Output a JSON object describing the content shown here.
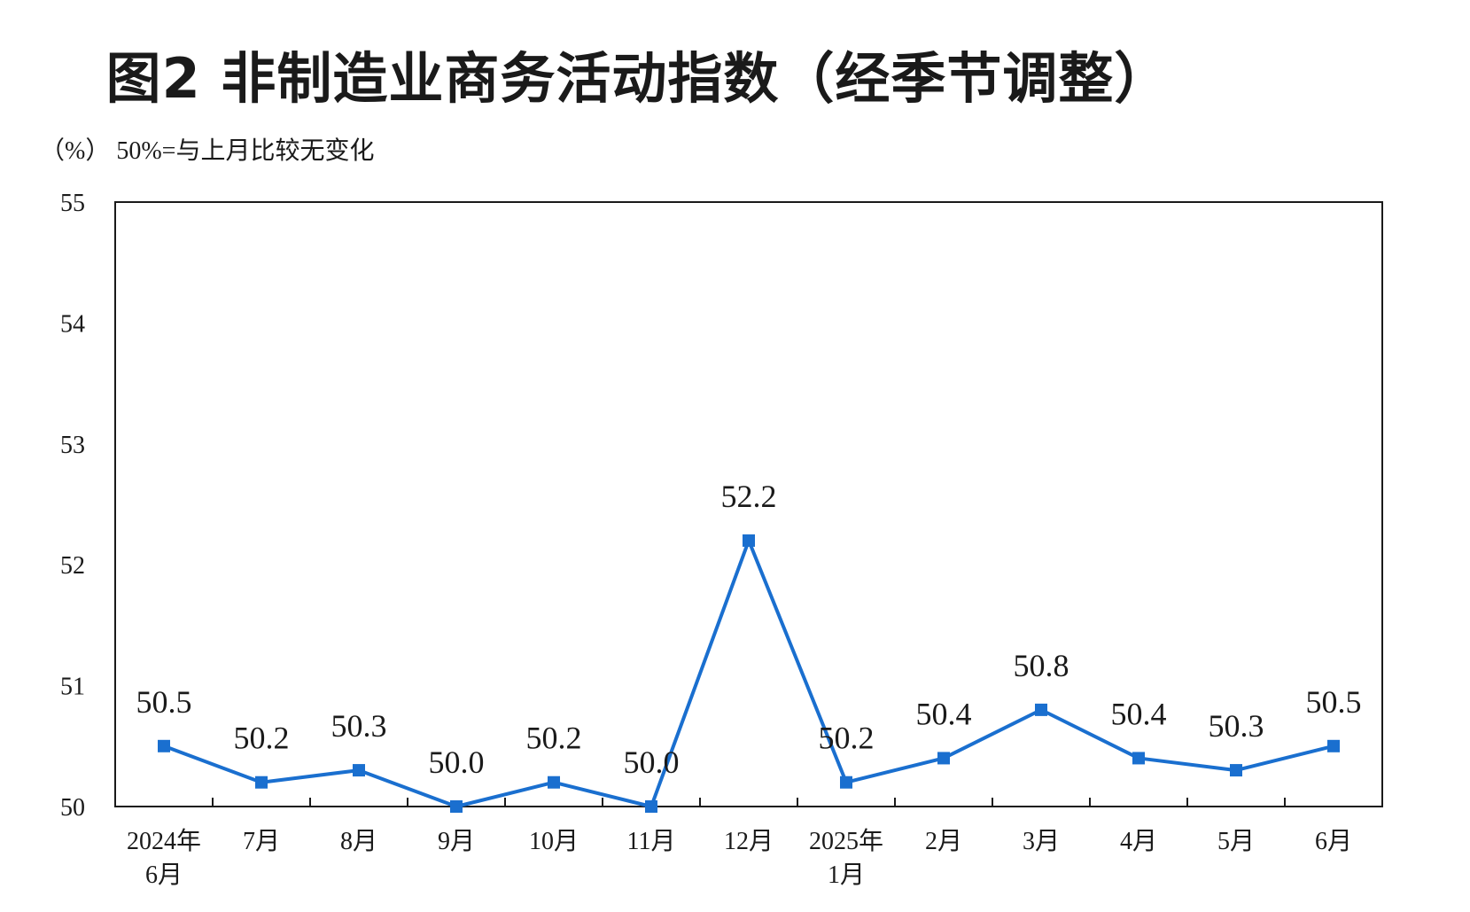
{
  "chart_data": {
    "type": "line",
    "title": "图2  非制造业商务活动指数（经季节调整）",
    "unit_note": "（%）  50%=与上月比较无变化",
    "categories": [
      [
        "2024年",
        "6月"
      ],
      [
        "7月"
      ],
      [
        "8月"
      ],
      [
        "9月"
      ],
      [
        "10月"
      ],
      [
        "11月"
      ],
      [
        "12月"
      ],
      [
        "2025年",
        "1月"
      ],
      [
        "2月"
      ],
      [
        "3月"
      ],
      [
        "4月"
      ],
      [
        "5月"
      ],
      [
        "6月"
      ]
    ],
    "values": [
      50.5,
      50.2,
      50.3,
      50.0,
      50.2,
      50.0,
      52.2,
      50.2,
      50.4,
      50.8,
      50.4,
      50.3,
      50.5
    ],
    "value_labels": [
      "50.5",
      "50.2",
      "50.3",
      "50.0",
      "50.2",
      "50.0",
      "52.2",
      "50.2",
      "50.4",
      "50.8",
      "50.4",
      "50.3",
      "50.5"
    ],
    "ylim": [
      50,
      55
    ],
    "yticks": [
      "50",
      "51",
      "52",
      "53",
      "54",
      "55"
    ],
    "xlabel": "",
    "ylabel": "",
    "grid": false,
    "legend": "none",
    "line_color": "#1a6fcf",
    "marker": "square"
  }
}
